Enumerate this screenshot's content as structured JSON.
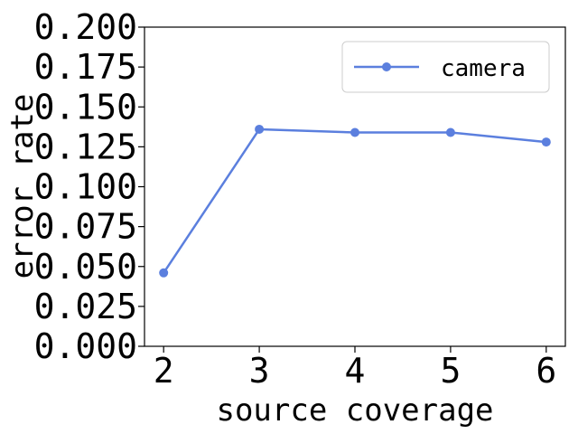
{
  "chart_data": {
    "type": "line",
    "xlabel": "source coverage",
    "ylabel": "error rate",
    "x": [
      2,
      3,
      4,
      5,
      6
    ],
    "series": [
      {
        "name": "camera",
        "values": [
          0.046,
          0.136,
          0.134,
          0.134,
          0.128
        ],
        "color": "#5b7fde"
      }
    ],
    "xlim": [
      1.8,
      6.2
    ],
    "ylim": [
      0,
      0.2
    ],
    "xticks": [
      2,
      3,
      4,
      5,
      6
    ],
    "yticks": [
      0,
      0.025,
      0.05,
      0.075,
      0.1,
      0.125,
      0.15,
      0.175,
      0.2
    ],
    "ytick_labels": [
      "0.000",
      "0.025",
      "0.050",
      "0.075",
      "0.100",
      "0.125",
      "0.150",
      "0.175",
      "0.200"
    ],
    "grid": false,
    "legend": "top-right",
    "marker": "circle"
  }
}
